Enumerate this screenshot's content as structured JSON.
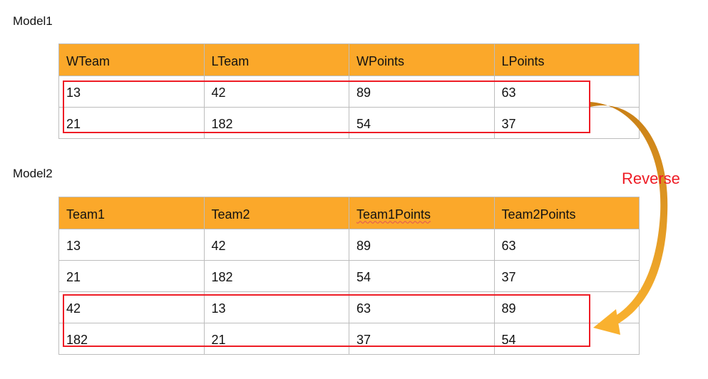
{
  "model1": {
    "label": "Model1",
    "headers": [
      "WTeam",
      "LTeam",
      "WPoints",
      "LPoints"
    ],
    "rows": [
      [
        "13",
        "42",
        "89",
        "63"
      ],
      [
        "21",
        "182",
        "54",
        "37"
      ]
    ]
  },
  "model2": {
    "label": "Model2",
    "headers": [
      "Team1",
      "Team2",
      "Team1Points",
      "Team2Points"
    ],
    "rows": [
      [
        "13",
        "42",
        "89",
        "63"
      ],
      [
        "21",
        "182",
        "54",
        "37"
      ],
      [
        "42",
        "13",
        "63",
        "89"
      ],
      [
        "182",
        "21",
        "37",
        "54"
      ]
    ]
  },
  "annotation": {
    "label": "Reverse"
  },
  "colors": {
    "header_bg": "#fba82a",
    "highlight": "#ee1c25",
    "arrow_start": "#c87f16",
    "arrow_end": "#f9b12f"
  }
}
